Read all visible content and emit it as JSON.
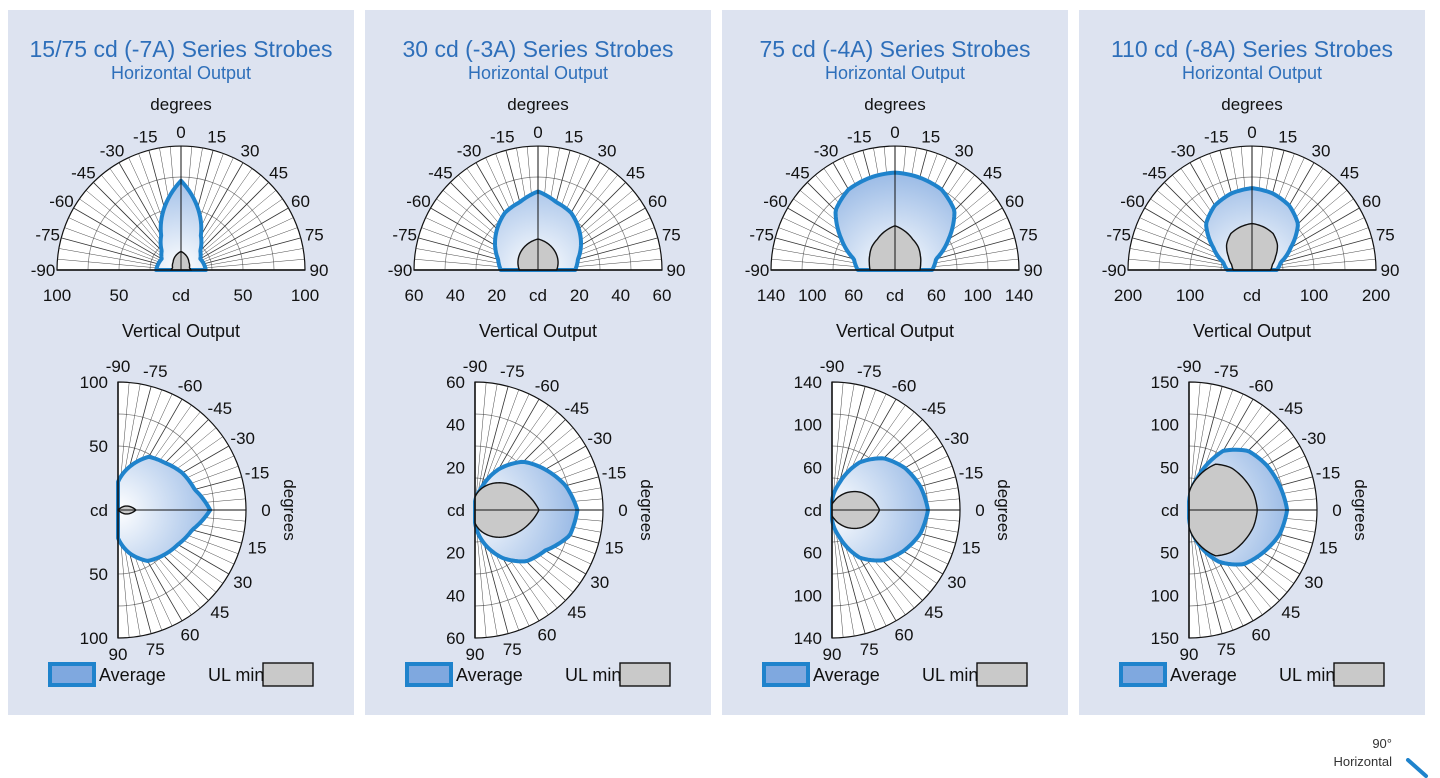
{
  "colors": {
    "panel_bg": "#dde3f0",
    "accent": "#2e6fba",
    "average_stroke": "#1f83cc",
    "average_fill_light": "#ffffff",
    "average_fill_dark": "#7fa8df",
    "ul_fill": "#c9c9c9"
  },
  "vertical_title": "Vertical Output",
  "degrees_label": "degrees",
  "cd_label": "cd",
  "legend": {
    "average": "Average",
    "ul_min": "UL min"
  },
  "horizontal_angle_ticks": [
    "-90",
    "-75",
    "-60",
    "-45",
    "-30",
    "-15",
    "0",
    "15",
    "30",
    "45",
    "60",
    "75",
    "90"
  ],
  "vertical_angle_ticks": [
    "-90",
    "-75",
    "-60",
    "-45",
    "-30",
    "-15",
    "0",
    "15",
    "30",
    "45",
    "60",
    "75",
    "90"
  ],
  "corner_note": {
    "line1": "90°",
    "line2": "Horizontal"
  },
  "chart_data": [
    {
      "type": "polar",
      "title": "15/75 cd (-7A) Series Strobes",
      "subtitle": "Horizontal Output",
      "horizontal": {
        "angles": [
          -90,
          -75,
          -60,
          -45,
          -30,
          -15,
          0,
          15,
          30,
          45,
          60,
          75,
          90
        ],
        "rmax": 100,
        "radial_tick_labels": [
          "100",
          "50",
          "cd",
          "50",
          "100"
        ],
        "average": [
          20,
          19,
          18,
          22,
          32,
          52,
          72,
          52,
          32,
          22,
          18,
          19,
          20
        ],
        "ul_min": [
          8,
          7,
          8,
          9,
          11,
          13,
          15,
          13,
          11,
          9,
          8,
          7,
          8
        ]
      },
      "vertical": {
        "angles": [
          -90,
          -75,
          -60,
          -45,
          -30,
          -15,
          0,
          15,
          30,
          45,
          60,
          75,
          90
        ],
        "rmax": 100,
        "radial_tick_labels": [
          "100",
          "50",
          "cd",
          "50",
          "100"
        ],
        "average": [
          22,
          35,
          48,
          52,
          58,
          62,
          72,
          60,
          54,
          50,
          46,
          35,
          22
        ],
        "ul_min": [
          0,
          0,
          0,
          0,
          6,
          10,
          14,
          10,
          6,
          0,
          0,
          0,
          0
        ]
      }
    },
    {
      "type": "polar",
      "title": "30 cd (-3A) Series Strobes",
      "subtitle": "Horizontal Output",
      "horizontal": {
        "angles": [
          -90,
          -75,
          -60,
          -45,
          -30,
          -15,
          0,
          15,
          30,
          45,
          60,
          75,
          90
        ],
        "rmax": 60,
        "radial_tick_labels": [
          "60",
          "40",
          "20",
          "cd",
          "20",
          "40",
          "60"
        ],
        "average": [
          18,
          20,
          24,
          28,
          32,
          34,
          38,
          34,
          32,
          28,
          24,
          20,
          18
        ],
        "ul_min": [
          9,
          10,
          11,
          12,
          13,
          14,
          15,
          14,
          13,
          12,
          11,
          10,
          9
        ]
      },
      "vertical": {
        "angles": [
          -90,
          -75,
          -60,
          -45,
          -30,
          -15,
          0,
          15,
          30,
          45,
          60,
          75,
          90
        ],
        "rmax": 60,
        "radial_tick_labels": [
          "60",
          "40",
          "20",
          "cd",
          "20",
          "40",
          "60"
        ],
        "average": [
          4,
          10,
          22,
          32,
          38,
          44,
          48,
          46,
          38,
          34,
          26,
          16,
          6
        ],
        "ul_min": [
          6,
          10,
          14,
          18,
          22,
          26,
          30,
          26,
          22,
          18,
          14,
          10,
          6
        ]
      }
    },
    {
      "type": "polar",
      "title": "75 cd (-4A) Series Strobes",
      "subtitle": "Horizontal Output",
      "horizontal": {
        "angles": [
          -90,
          -75,
          -60,
          -45,
          -30,
          -15,
          0,
          15,
          30,
          45,
          60,
          75,
          90
        ],
        "rmax": 140,
        "radial_tick_labels": [
          "140",
          "100",
          "60",
          "cd",
          "60",
          "100",
          "140"
        ],
        "average": [
          42,
          48,
          70,
          95,
          105,
          108,
          110,
          108,
          105,
          95,
          70,
          48,
          42
        ],
        "ul_min": [
          28,
          30,
          33,
          37,
          40,
          45,
          50,
          45,
          40,
          37,
          33,
          30,
          28
        ]
      },
      "vertical": {
        "angles": [
          -90,
          -75,
          -60,
          -45,
          -30,
          -15,
          0,
          15,
          30,
          45,
          60,
          75,
          90
        ],
        "rmax": 140,
        "radial_tick_labels": [
          "140",
          "100",
          "60",
          "cd",
          "60",
          "100",
          "140"
        ],
        "average": [
          10,
          30,
          60,
          80,
          92,
          100,
          105,
          100,
          90,
          78,
          60,
          30,
          10
        ],
        "ul_min": [
          6,
          10,
          18,
          28,
          38,
          46,
          52,
          46,
          38,
          28,
          18,
          10,
          6
        ]
      }
    },
    {
      "type": "polar",
      "title": "110 cd (-8A) Series Strobes",
      "subtitle": "Horizontal Output",
      "horizontal": {
        "angles": [
          -90,
          -75,
          -60,
          -45,
          -30,
          -15,
          0,
          15,
          30,
          45,
          60,
          75,
          90
        ],
        "rmax": 200,
        "radial_tick_labels": [
          "200",
          "100",
          "cd",
          "100",
          "200"
        ],
        "average": [
          40,
          48,
          72,
          105,
          120,
          128,
          132,
          128,
          120,
          105,
          72,
          48,
          40
        ],
        "ul_min": [
          30,
          34,
          44,
          58,
          68,
          72,
          75,
          72,
          68,
          58,
          44,
          34,
          30
        ]
      },
      "vertical": {
        "angles": [
          -90,
          -75,
          -60,
          -45,
          -30,
          -15,
          0,
          15,
          30,
          45,
          60,
          75,
          90
        ],
        "rmax": 150,
        "radial_tick_labels": [
          "150",
          "100",
          "50",
          "cd",
          "50",
          "100",
          "150"
        ],
        "average": [
          10,
          40,
          80,
          98,
          105,
          110,
          115,
          110,
          100,
          90,
          70,
          40,
          10
        ],
        "ul_min": [
          20,
          40,
          62,
          70,
          74,
          78,
          80,
          78,
          74,
          70,
          62,
          40,
          20
        ]
      }
    }
  ]
}
